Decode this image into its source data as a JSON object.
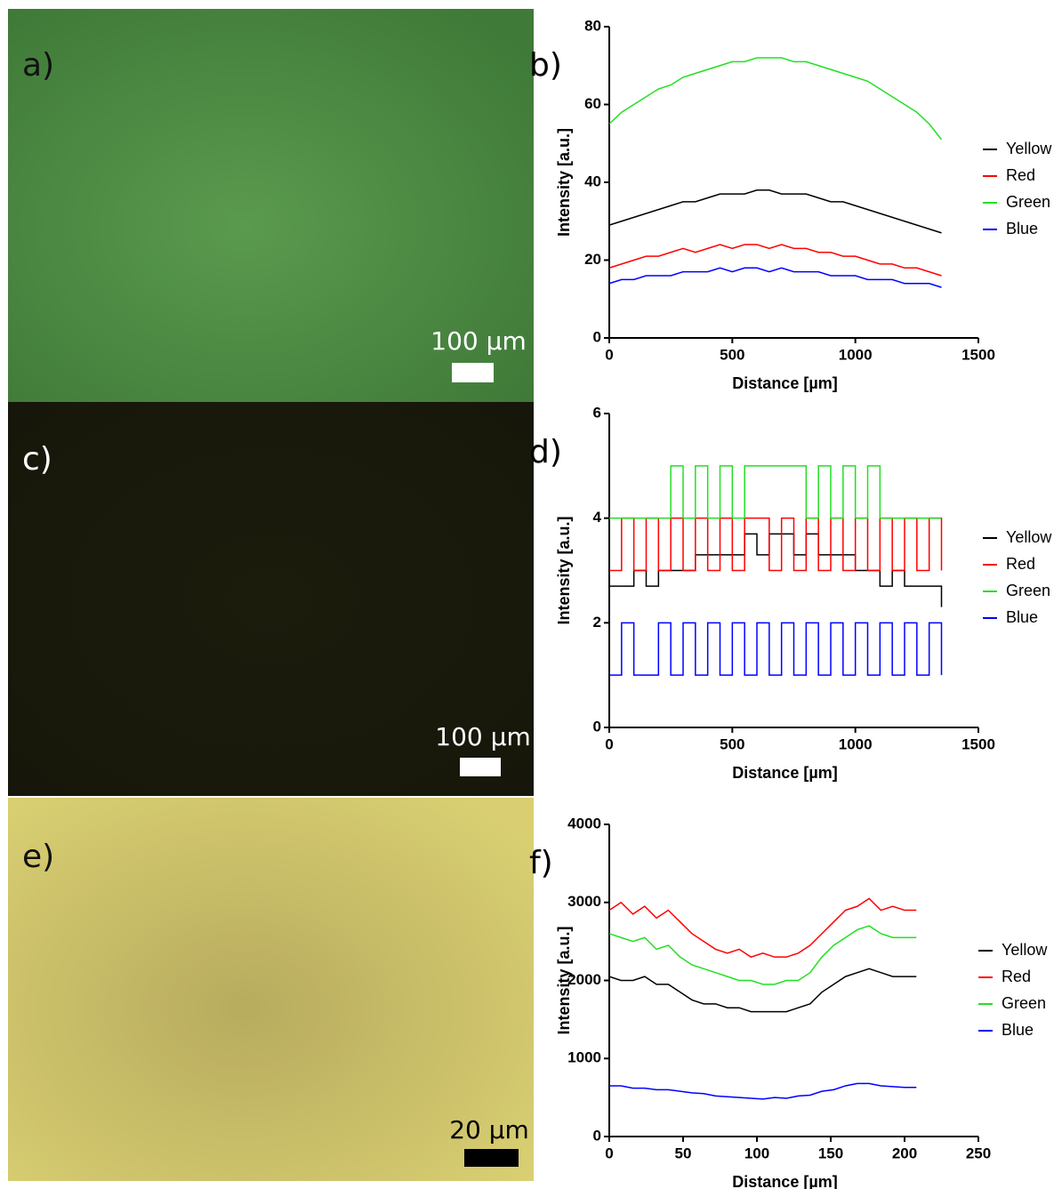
{
  "panels": [
    {
      "label": "a)",
      "scale_bar": "100 µm"
    },
    {
      "label": "c)",
      "scale_bar": "100 µm"
    },
    {
      "label": "e)",
      "scale_bar": "20 µm"
    }
  ],
  "chart_data": [
    {
      "type": "line",
      "panel_label": "b)",
      "x_label": "Distance [µm]",
      "y_label": "Intensity [a.u.]",
      "xlim": [
        0,
        1500
      ],
      "xticks": [
        0,
        500,
        1000,
        1500
      ],
      "ylim": [
        0,
        80
      ],
      "yticks": [
        0,
        20,
        40,
        60,
        80
      ],
      "x": [
        0,
        50,
        100,
        150,
        200,
        250,
        300,
        350,
        400,
        450,
        500,
        550,
        600,
        650,
        700,
        750,
        800,
        850,
        900,
        950,
        1000,
        1050,
        1100,
        1150,
        1200,
        1250,
        1300,
        1350
      ],
      "series": [
        {
          "name": "Yellow",
          "color": "#000000",
          "values": [
            29,
            30,
            31,
            32,
            33,
            34,
            35,
            35,
            36,
            37,
            37,
            37,
            38,
            38,
            37,
            37,
            37,
            36,
            35,
            35,
            34,
            33,
            32,
            31,
            30,
            29,
            28,
            27
          ]
        },
        {
          "name": "Red",
          "color": "#ff0000",
          "values": [
            18,
            19,
            20,
            21,
            21,
            22,
            23,
            22,
            23,
            24,
            23,
            24,
            24,
            23,
            24,
            23,
            23,
            22,
            22,
            21,
            21,
            20,
            19,
            19,
            18,
            18,
            17,
            16
          ]
        },
        {
          "name": "Green",
          "color": "#22e022",
          "values": [
            55,
            58,
            60,
            62,
            64,
            65,
            67,
            68,
            69,
            70,
            71,
            71,
            72,
            72,
            72,
            71,
            71,
            70,
            69,
            68,
            67,
            66,
            64,
            62,
            60,
            58,
            55,
            51
          ]
        },
        {
          "name": "Blue",
          "color": "#0000ff",
          "values": [
            14,
            15,
            15,
            16,
            16,
            16,
            17,
            17,
            17,
            18,
            17,
            18,
            18,
            17,
            18,
            17,
            17,
            17,
            16,
            16,
            16,
            15,
            15,
            15,
            14,
            14,
            14,
            13
          ]
        }
      ]
    },
    {
      "type": "line",
      "step": true,
      "panel_label": "d)",
      "x_label": "Distance [µm]",
      "y_label": "Intensity [a.u.]",
      "xlim": [
        0,
        1500
      ],
      "xticks": [
        0,
        500,
        1000,
        1500
      ],
      "ylim": [
        0,
        6
      ],
      "yticks": [
        0,
        2,
        4,
        6
      ],
      "x": [
        0,
        50,
        100,
        150,
        200,
        250,
        300,
        350,
        400,
        450,
        500,
        550,
        600,
        650,
        700,
        750,
        800,
        850,
        900,
        950,
        1000,
        1050,
        1100,
        1150,
        1200,
        1250,
        1300,
        1350
      ],
      "series": [
        {
          "name": "Yellow",
          "color": "#000000",
          "values": [
            2.7,
            2.7,
            3,
            2.7,
            3,
            3,
            3,
            3.3,
            3.3,
            3.3,
            3.3,
            3.7,
            3.3,
            3.7,
            3.7,
            3.3,
            3.7,
            3.3,
            3.3,
            3.3,
            3,
            3,
            2.7,
            3,
            2.7,
            2.7,
            2.7,
            2.3
          ]
        },
        {
          "name": "Red",
          "color": "#ff0000",
          "values": [
            3,
            4,
            3,
            4,
            3,
            4,
            3,
            4,
            3,
            4,
            3,
            4,
            4,
            3,
            4,
            3,
            4,
            3,
            4,
            3,
            4,
            3,
            4,
            3,
            4,
            3,
            4,
            3
          ]
        },
        {
          "name": "Green",
          "color": "#22e022",
          "values": [
            4,
            4,
            4,
            4,
            4,
            5,
            4,
            5,
            4,
            5,
            4,
            5,
            5,
            5,
            5,
            5,
            4,
            5,
            4,
            5,
            4,
            5,
            4,
            4,
            4,
            4,
            4,
            4
          ]
        },
        {
          "name": "Blue",
          "color": "#0000ff",
          "values": [
            1,
            2,
            1,
            1,
            2,
            1,
            2,
            1,
            2,
            1,
            2,
            1,
            2,
            1,
            2,
            1,
            2,
            1,
            2,
            1,
            2,
            1,
            2,
            1,
            2,
            1,
            2,
            1
          ]
        }
      ]
    },
    {
      "type": "line",
      "panel_label": "f)",
      "x_label": "Distance [µm]",
      "y_label": "Intensity [a.u.]",
      "xlim": [
        0,
        250
      ],
      "xticks": [
        0,
        50,
        100,
        150,
        200,
        250
      ],
      "ylim": [
        0,
        4000
      ],
      "yticks": [
        0,
        1000,
        2000,
        3000,
        4000
      ],
      "x": [
        0,
        8,
        16,
        24,
        32,
        40,
        48,
        56,
        64,
        72,
        80,
        88,
        96,
        104,
        112,
        120,
        128,
        136,
        144,
        152,
        160,
        168,
        176,
        184,
        192,
        200,
        208
      ],
      "series": [
        {
          "name": "Yellow",
          "color": "#000000",
          "values": [
            2050,
            2000,
            2000,
            2050,
            1950,
            1950,
            1850,
            1750,
            1700,
            1700,
            1650,
            1650,
            1600,
            1600,
            1600,
            1600,
            1650,
            1700,
            1850,
            1950,
            2050,
            2100,
            2150,
            2100,
            2050,
            2050,
            2050
          ]
        },
        {
          "name": "Red",
          "color": "#ff0000",
          "values": [
            2900,
            3000,
            2850,
            2950,
            2800,
            2900,
            2750,
            2600,
            2500,
            2400,
            2350,
            2400,
            2300,
            2350,
            2300,
            2300,
            2350,
            2450,
            2600,
            2750,
            2900,
            2950,
            3050,
            2900,
            2950,
            2900,
            2900
          ]
        },
        {
          "name": "Green",
          "color": "#22e022",
          "values": [
            2600,
            2550,
            2500,
            2550,
            2400,
            2450,
            2300,
            2200,
            2150,
            2100,
            2050,
            2000,
            2000,
            1950,
            1950,
            2000,
            2000,
            2100,
            2300,
            2450,
            2550,
            2650,
            2700,
            2600,
            2550,
            2550,
            2550
          ]
        },
        {
          "name": "Blue",
          "color": "#0000ff",
          "values": [
            650,
            650,
            620,
            620,
            600,
            600,
            580,
            560,
            550,
            520,
            510,
            500,
            490,
            480,
            500,
            490,
            520,
            530,
            580,
            600,
            650,
            680,
            680,
            650,
            640,
            630,
            630
          ]
        }
      ]
    }
  ]
}
